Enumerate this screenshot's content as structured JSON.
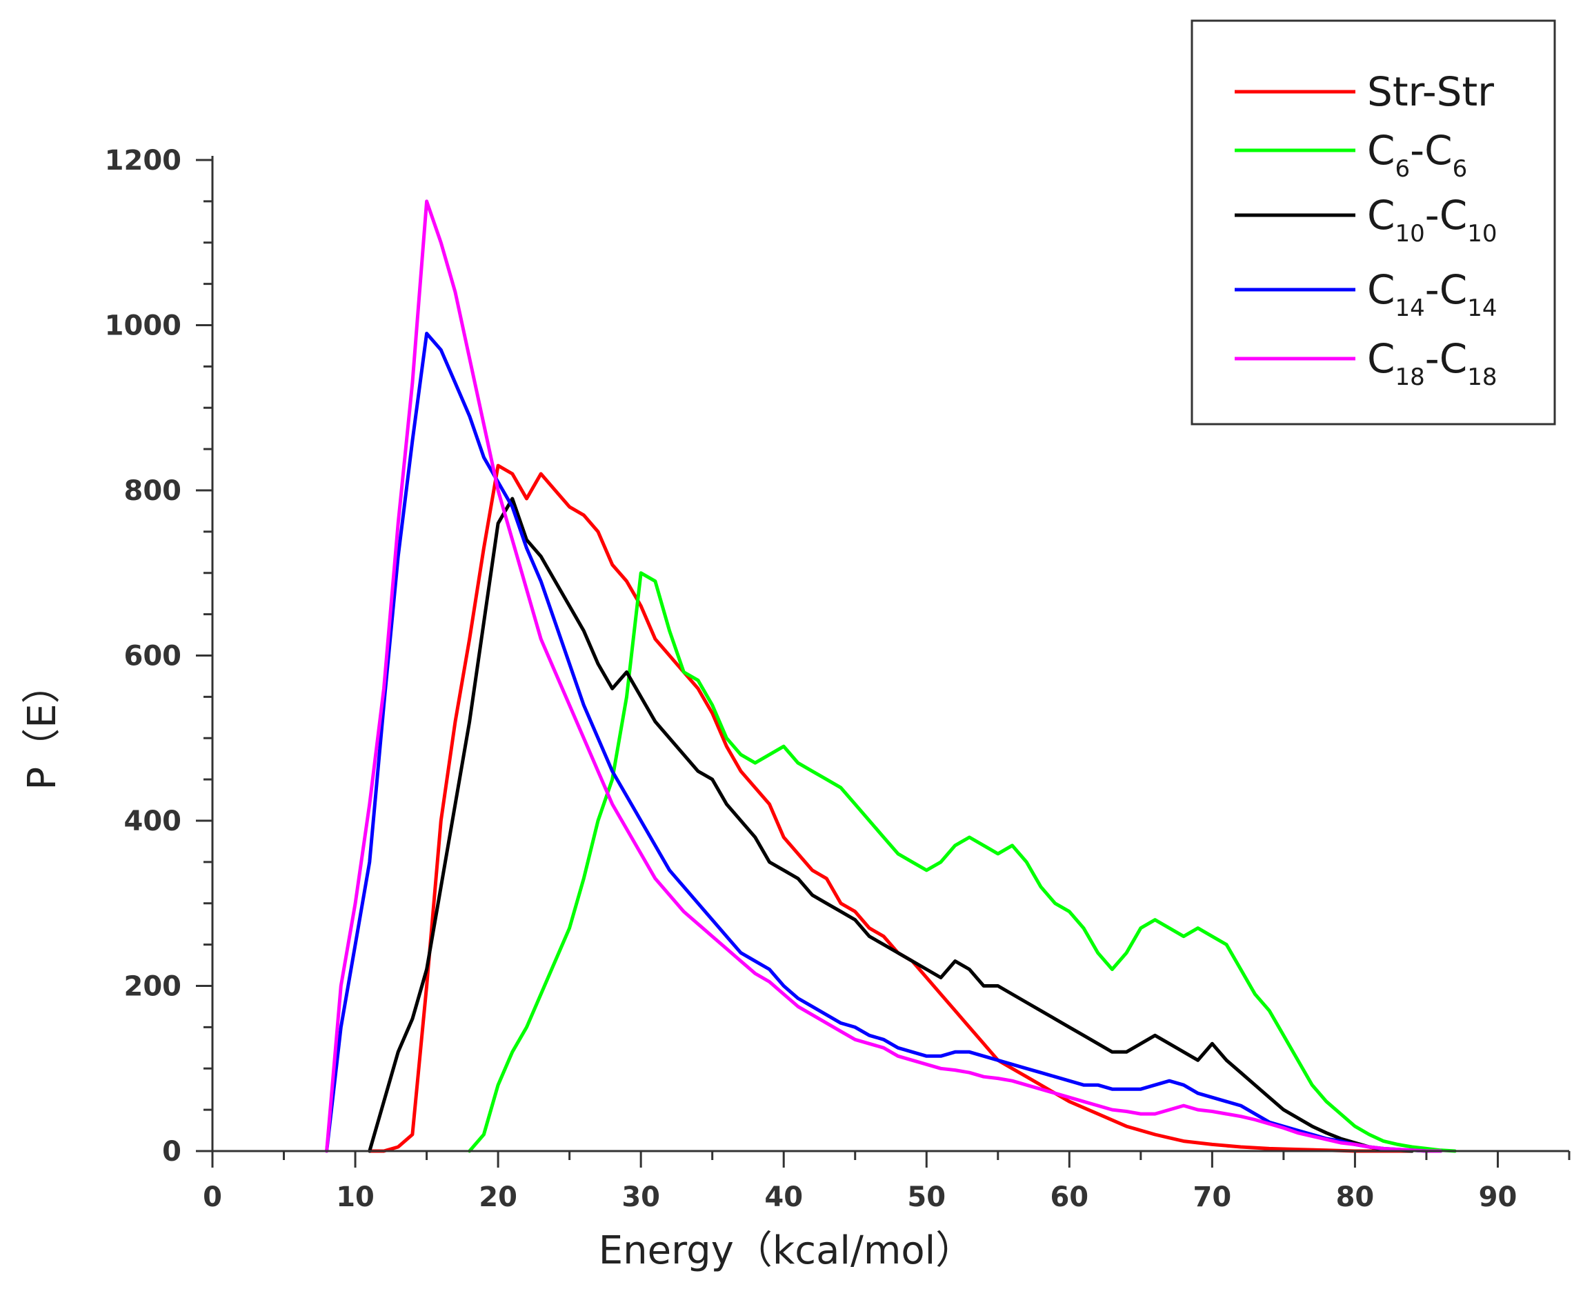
{
  "chart_data": {
    "type": "line",
    "title": "",
    "xlabel": "Energy（kcal/mol）",
    "ylabel": "P（E）",
    "xlim": [
      0,
      95
    ],
    "ylim": [
      0,
      1200
    ],
    "xticks": [
      0,
      10,
      20,
      30,
      40,
      50,
      60,
      70,
      80,
      90
    ],
    "yticks": [
      0,
      200,
      400,
      600,
      800,
      1000,
      1200
    ],
    "xtick_labels": [
      "0",
      "10",
      "20",
      "30",
      "40",
      "50",
      "60",
      "70",
      "80",
      "90"
    ],
    "ytick_labels": [
      "0",
      "200",
      "400",
      "600",
      "800",
      "1000",
      "1200"
    ],
    "grid": false,
    "legend_position": "top-right",
    "series": [
      {
        "name": "Str-Str",
        "main": "Str-Str",
        "sub1": "",
        "mid": "",
        "sub2": "",
        "color": "#ff0000",
        "x": [
          11,
          12,
          13,
          14,
          15,
          16,
          17,
          18,
          19,
          20,
          21,
          22,
          23,
          24,
          25,
          26,
          27,
          28,
          29,
          30,
          31,
          32,
          33,
          34,
          35,
          36,
          37,
          38,
          39,
          40,
          41,
          42,
          43,
          44,
          45,
          46,
          47,
          48,
          49,
          50,
          51,
          52,
          53,
          54,
          55,
          56,
          57,
          58,
          59,
          60,
          62,
          64,
          66,
          68,
          70,
          72,
          74,
          76,
          78,
          80,
          82,
          84
        ],
        "y": [
          0,
          0,
          5,
          20,
          200,
          400,
          520,
          620,
          730,
          830,
          820,
          790,
          820,
          800,
          780,
          770,
          750,
          710,
          690,
          660,
          620,
          600,
          580,
          560,
          530,
          490,
          460,
          440,
          420,
          380,
          360,
          340,
          330,
          300,
          290,
          270,
          260,
          240,
          230,
          210,
          190,
          170,
          150,
          130,
          110,
          100,
          90,
          80,
          70,
          60,
          45,
          30,
          20,
          12,
          8,
          5,
          3,
          2,
          1,
          0,
          0,
          0
        ]
      },
      {
        "name": "C6-C6",
        "main": "C",
        "sub1": "6",
        "mid": "-C",
        "sub2": "6",
        "color": "#00ff00",
        "x": [
          18,
          19,
          20,
          21,
          22,
          23,
          24,
          25,
          26,
          27,
          28,
          29,
          30,
          31,
          32,
          33,
          34,
          35,
          36,
          37,
          38,
          39,
          40,
          41,
          42,
          43,
          44,
          45,
          46,
          47,
          48,
          49,
          50,
          51,
          52,
          53,
          54,
          55,
          56,
          57,
          58,
          59,
          60,
          61,
          62,
          63,
          64,
          65,
          66,
          67,
          68,
          69,
          70,
          71,
          72,
          73,
          74,
          75,
          76,
          77,
          78,
          79,
          80,
          81,
          82,
          83,
          84,
          85,
          86,
          87
        ],
        "y": [
          0,
          20,
          80,
          120,
          150,
          190,
          230,
          270,
          330,
          400,
          450,
          550,
          700,
          690,
          630,
          580,
          570,
          540,
          500,
          480,
          470,
          480,
          490,
          470,
          460,
          450,
          440,
          420,
          400,
          380,
          360,
          350,
          340,
          350,
          370,
          380,
          370,
          360,
          370,
          350,
          320,
          300,
          290,
          270,
          240,
          220,
          240,
          270,
          280,
          270,
          260,
          270,
          260,
          250,
          220,
          190,
          170,
          140,
          110,
          80,
          60,
          45,
          30,
          20,
          12,
          8,
          5,
          3,
          1,
          0
        ]
      },
      {
        "name": "C10-C10",
        "main": "C",
        "sub1": "10",
        "mid": "-C",
        "sub2": "10",
        "color": "#000000",
        "x": [
          11,
          12,
          13,
          14,
          15,
          16,
          17,
          18,
          19,
          20,
          21,
          22,
          23,
          24,
          25,
          26,
          27,
          28,
          29,
          30,
          31,
          32,
          33,
          34,
          35,
          36,
          37,
          38,
          39,
          40,
          41,
          42,
          43,
          44,
          45,
          46,
          47,
          48,
          49,
          50,
          51,
          52,
          53,
          54,
          55,
          56,
          57,
          58,
          59,
          60,
          61,
          62,
          63,
          64,
          65,
          66,
          67,
          68,
          69,
          70,
          71,
          72,
          73,
          74,
          75,
          76,
          77,
          78,
          79,
          80,
          81,
          82,
          83,
          84
        ],
        "y": [
          0,
          60,
          120,
          160,
          220,
          320,
          420,
          520,
          640,
          760,
          790,
          740,
          720,
          690,
          660,
          630,
          590,
          560,
          580,
          550,
          520,
          500,
          480,
          460,
          450,
          420,
          400,
          380,
          350,
          340,
          330,
          310,
          300,
          290,
          280,
          260,
          250,
          240,
          230,
          220,
          210,
          230,
          220,
          200,
          200,
          190,
          180,
          170,
          160,
          150,
          140,
          130,
          120,
          120,
          130,
          140,
          130,
          120,
          110,
          130,
          110,
          95,
          80,
          65,
          50,
          40,
          30,
          22,
          15,
          10,
          5,
          2,
          1,
          0
        ]
      },
      {
        "name": "C14-C14",
        "main": "C",
        "sub1": "14",
        "mid": "-C",
        "sub2": "14",
        "color": "#0000ff",
        "x": [
          8,
          9,
          10,
          11,
          12,
          13,
          14,
          15,
          16,
          17,
          18,
          19,
          20,
          21,
          22,
          23,
          24,
          25,
          26,
          27,
          28,
          29,
          30,
          31,
          32,
          33,
          34,
          35,
          36,
          37,
          38,
          39,
          40,
          41,
          42,
          43,
          44,
          45,
          46,
          47,
          48,
          49,
          50,
          51,
          52,
          53,
          54,
          55,
          56,
          57,
          58,
          59,
          60,
          61,
          62,
          63,
          64,
          65,
          66,
          67,
          68,
          69,
          70,
          71,
          72,
          73,
          74,
          75,
          76,
          77,
          78,
          79,
          80,
          81,
          82,
          83,
          84,
          85,
          86
        ],
        "y": [
          0,
          150,
          250,
          350,
          540,
          720,
          860,
          990,
          970,
          930,
          890,
          840,
          810,
          780,
          730,
          690,
          640,
          590,
          540,
          500,
          460,
          430,
          400,
          370,
          340,
          320,
          300,
          280,
          260,
          240,
          230,
          220,
          200,
          185,
          175,
          165,
          155,
          150,
          140,
          135,
          125,
          120,
          115,
          115,
          120,
          120,
          115,
          110,
          105,
          100,
          95,
          90,
          85,
          80,
          80,
          75,
          75,
          75,
          80,
          85,
          80,
          70,
          65,
          60,
          55,
          45,
          35,
          30,
          25,
          20,
          15,
          12,
          8,
          5,
          3,
          2,
          1,
          0,
          0
        ]
      },
      {
        "name": "C18-C18",
        "main": "C",
        "sub1": "18",
        "mid": "-C",
        "sub2": "18",
        "color": "#ff00ff",
        "x": [
          8,
          9,
          10,
          11,
          12,
          13,
          14,
          15,
          16,
          17,
          18,
          19,
          20,
          21,
          22,
          23,
          24,
          25,
          26,
          27,
          28,
          29,
          30,
          31,
          32,
          33,
          34,
          35,
          36,
          37,
          38,
          39,
          40,
          41,
          42,
          43,
          44,
          45,
          46,
          47,
          48,
          49,
          50,
          51,
          52,
          53,
          54,
          55,
          56,
          57,
          58,
          59,
          60,
          61,
          62,
          63,
          64,
          65,
          66,
          67,
          68,
          69,
          70,
          71,
          72,
          73,
          74,
          75,
          76,
          77,
          78,
          79,
          80,
          81,
          82,
          83,
          84,
          85,
          86
        ],
        "y": [
          0,
          200,
          300,
          420,
          560,
          760,
          930,
          1150,
          1100,
          1040,
          960,
          880,
          800,
          740,
          680,
          620,
          580,
          540,
          500,
          460,
          420,
          390,
          360,
          330,
          310,
          290,
          275,
          260,
          245,
          230,
          215,
          205,
          190,
          175,
          165,
          155,
          145,
          135,
          130,
          125,
          115,
          110,
          105,
          100,
          98,
          95,
          90,
          88,
          85,
          80,
          75,
          70,
          65,
          60,
          55,
          50,
          48,
          45,
          45,
          50,
          55,
          50,
          48,
          45,
          42,
          38,
          33,
          28,
          22,
          18,
          14,
          10,
          8,
          5,
          3,
          2,
          1,
          0,
          0
        ]
      }
    ]
  }
}
